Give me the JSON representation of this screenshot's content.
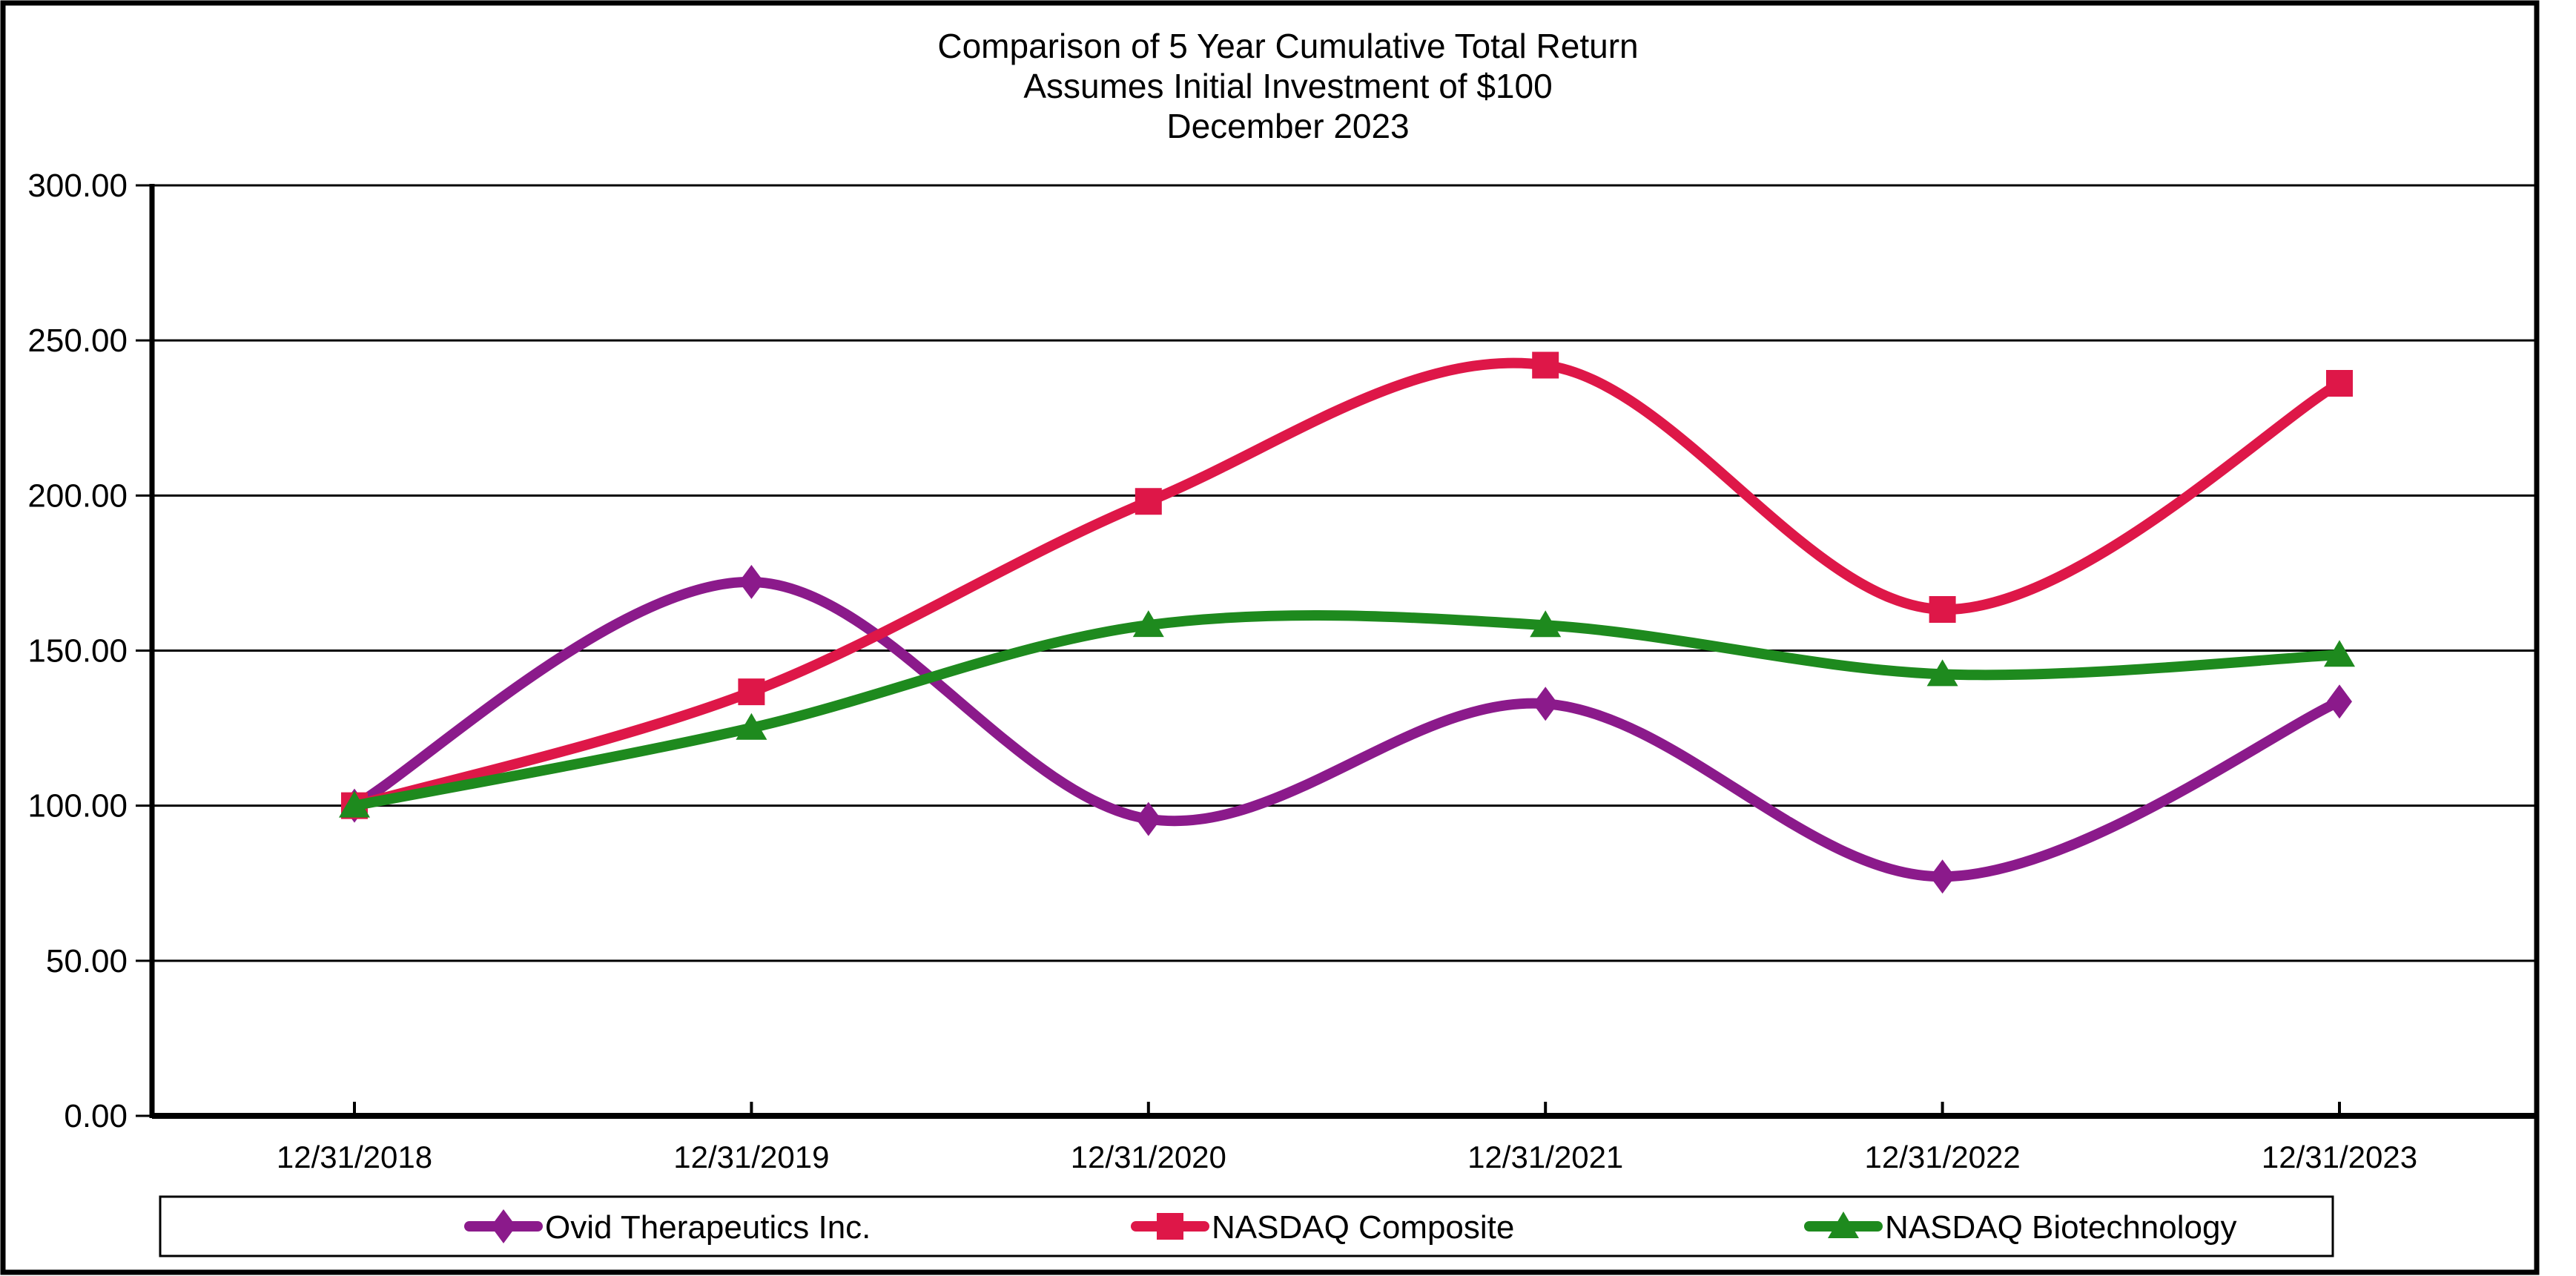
{
  "page": {
    "background": "#ffffff",
    "border_color": "#000000"
  },
  "chart_data": {
    "type": "line",
    "title": "Comparison of 5 Year Cumulative Total Return Assumes Initial Investment of $100 December 2023",
    "title_lines": [
      "Comparison of 5 Year Cumulative Total Return",
      "Assumes Initial Investment of $100",
      "December 2023"
    ],
    "categories": [
      "12/31/2018",
      "12/31/2019",
      "12/31/2020",
      "12/31/2021",
      "12/31/2022",
      "12/31/2023"
    ],
    "series": [
      {
        "name": "Ovid Therapeutics Inc.",
        "color": "#8B1A8B",
        "marker": "diamond",
        "values": [
          100.0,
          172.14,
          95.71,
          132.86,
          77.14,
          133.57
        ]
      },
      {
        "name": "NASDAQ Composite",
        "color": "#DE1748",
        "marker": "square",
        "values": [
          100.0,
          136.69,
          198.1,
          242.03,
          163.28,
          236.17
        ]
      },
      {
        "name": "NASDAQ Biotechnology",
        "color": "#1E8A1E",
        "marker": "triangle",
        "values": [
          100.0,
          125.08,
          158.23,
          158.18,
          142.39,
          148.64
        ]
      }
    ],
    "xlabel": "",
    "ylabel": "",
    "ylim": [
      0,
      300
    ],
    "ytick_step": 50,
    "ytick_decimals": 2,
    "grid": true,
    "line_style": "smoothed",
    "legend_position": "bottom",
    "axis_color": "#000000",
    "text_color": "#000000"
  }
}
